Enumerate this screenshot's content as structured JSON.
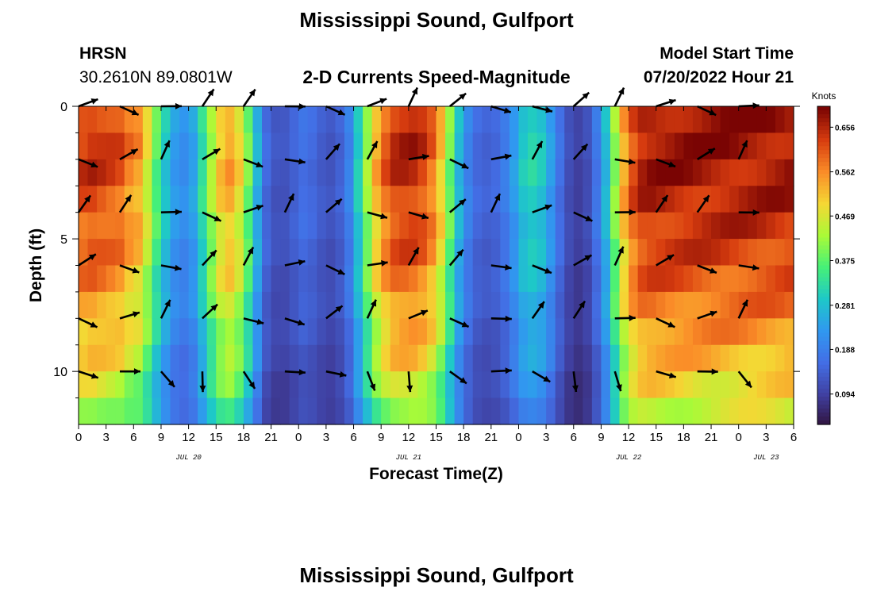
{
  "header": {
    "title": "Mississippi Sound, Gulfport",
    "station_code": "HRSN",
    "coordinates": "30.2610N  89.0801W",
    "chart_title": "2-D Currents Speed-Magnitude",
    "model_label": "Model Start Time",
    "model_time": "07/20/2022 Hour 21",
    "footer_title": "Mississippi Sound, Gulfport"
  },
  "chart_data": {
    "type": "heatmap",
    "title": "2-D Currents Speed-Magnitude",
    "xlabel": "Forecast Time(Z)",
    "ylabel": "Depth (ft)",
    "colorbar_label": "Knots",
    "x_ticks": [
      "0",
      "3",
      "6",
      "9",
      "12",
      "15",
      "18",
      "21",
      "0",
      "3",
      "6",
      "9",
      "12",
      "15",
      "18",
      "21",
      "0",
      "3",
      "6",
      "9",
      "12",
      "15",
      "18",
      "21",
      "0",
      "3",
      "6"
    ],
    "x_range_hours": [
      0,
      78
    ],
    "date_labels": [
      {
        "label": "JUL 20",
        "hour": 12
      },
      {
        "label": "JUL 21",
        "hour": 36
      },
      {
        "label": "JUL 22",
        "hour": 60
      },
      {
        "label": "JUL 23",
        "hour": 75
      }
    ],
    "y_ticks": [
      "0",
      "5",
      "10"
    ],
    "y_range_ft": [
      0,
      12
    ],
    "y_reversed": true,
    "colorbar_ticks": [
      "0.656",
      "0.562",
      "0.469",
      "0.375",
      "0.281",
      "0.188",
      "0.094"
    ],
    "colorbar_range": [
      0.03,
      0.7
    ],
    "speed_hour_knots": [
      [
        0,
        0.64
      ],
      [
        1,
        0.65
      ],
      [
        2,
        0.64
      ],
      [
        3,
        0.63
      ],
      [
        4,
        0.62
      ],
      [
        5,
        0.58
      ],
      [
        6,
        0.56
      ],
      [
        7,
        0.48
      ],
      [
        8,
        0.38
      ],
      [
        9,
        0.3
      ],
      [
        10,
        0.24
      ],
      [
        11,
        0.22
      ],
      [
        12,
        0.25
      ],
      [
        13,
        0.34
      ],
      [
        14,
        0.44
      ],
      [
        15,
        0.52
      ],
      [
        16,
        0.55
      ],
      [
        17,
        0.5
      ],
      [
        18,
        0.4
      ],
      [
        19,
        0.27
      ],
      [
        20,
        0.16
      ],
      [
        21,
        0.13
      ],
      [
        22,
        0.13
      ],
      [
        23,
        0.15
      ],
      [
        24,
        0.17
      ],
      [
        25,
        0.16
      ],
      [
        26,
        0.14
      ],
      [
        27,
        0.13
      ],
      [
        28,
        0.15
      ],
      [
        29,
        0.2
      ],
      [
        30,
        0.31
      ],
      [
        31,
        0.43
      ],
      [
        32,
        0.54
      ],
      [
        33,
        0.61
      ],
      [
        34,
        0.65
      ],
      [
        35,
        0.66
      ],
      [
        36,
        0.66
      ],
      [
        37,
        0.64
      ],
      [
        38,
        0.6
      ],
      [
        39,
        0.52
      ],
      [
        40,
        0.4
      ],
      [
        41,
        0.28
      ],
      [
        42,
        0.2
      ],
      [
        43,
        0.16
      ],
      [
        44,
        0.15
      ],
      [
        45,
        0.16
      ],
      [
        46,
        0.19
      ],
      [
        47,
        0.24
      ],
      [
        48,
        0.3
      ],
      [
        49,
        0.32
      ],
      [
        50,
        0.3
      ],
      [
        51,
        0.24
      ],
      [
        52,
        0.17
      ],
      [
        53,
        0.12
      ],
      [
        54,
        0.1
      ],
      [
        55,
        0.12
      ],
      [
        56,
        0.18
      ],
      [
        57,
        0.28
      ],
      [
        58,
        0.42
      ],
      [
        59,
        0.55
      ],
      [
        60,
        0.63
      ],
      [
        61,
        0.67
      ],
      [
        62,
        0.68
      ],
      [
        63,
        0.68
      ],
      [
        64,
        0.68
      ],
      [
        65,
        0.68
      ],
      [
        66,
        0.68
      ],
      [
        67,
        0.68
      ],
      [
        68,
        0.68
      ],
      [
        69,
        0.68
      ],
      [
        70,
        0.68
      ],
      [
        71,
        0.68
      ],
      [
        72,
        0.68
      ],
      [
        73,
        0.68
      ],
      [
        74,
        0.68
      ],
      [
        75,
        0.68
      ],
      [
        76,
        0.68
      ],
      [
        77,
        0.68
      ],
      [
        78,
        0.68
      ]
    ]
  }
}
